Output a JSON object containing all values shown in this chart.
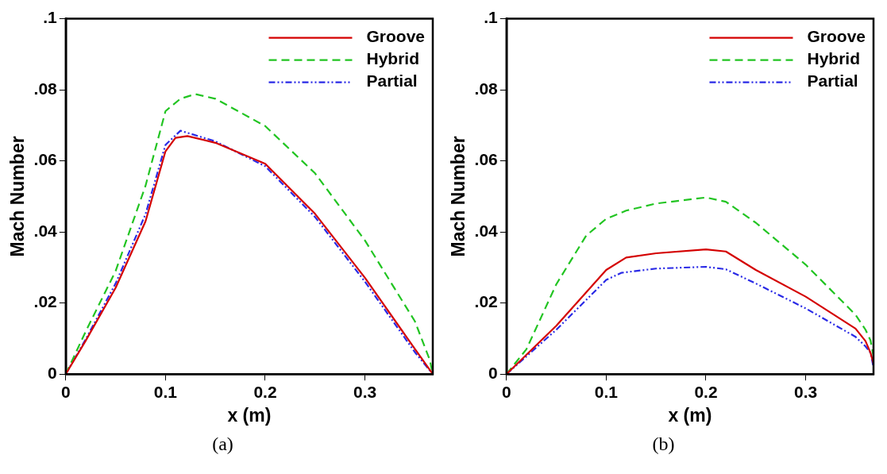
{
  "chart_data": [
    {
      "type": "line",
      "xlabel": "x (m)",
      "ylabel": "Mach Number",
      "annotations": [
        "(a)"
      ],
      "legend": "top right",
      "xlim": [
        0,
        0.368
      ],
      "xticks": [
        0,
        0.1,
        0.2,
        0.3
      ],
      "ylim": [
        0,
        0.1
      ],
      "yticks": [
        0,
        {
          "value": 0.02,
          "label": ".02"
        },
        {
          "value": 0.04,
          "label": ".04"
        },
        {
          "value": 0.06,
          "label": ".06"
        },
        {
          "value": 0.08,
          "label": ".08"
        },
        {
          "value": 0.1,
          "label": ".1"
        }
      ],
      "series": [
        {
          "name": "Groove",
          "color": "#d40000",
          "line_style": "solid",
          "x": [
            0,
            0.02,
            0.05,
            0.08,
            0.1,
            0.11,
            0.122,
            0.15,
            0.2,
            0.25,
            0.3,
            0.35,
            0.368
          ],
          "values": [
            0,
            0.0094,
            0.0243,
            0.043,
            0.0627,
            0.0665,
            0.067,
            0.0651,
            0.0592,
            0.0451,
            0.0271,
            0.0071,
            0
          ]
        },
        {
          "name": "Hybrid",
          "color": "#22c422",
          "line_style": "dashed",
          "x": [
            0,
            0.02,
            0.05,
            0.08,
            0.1,
            0.115,
            0.13,
            0.15,
            0.2,
            0.25,
            0.3,
            0.35,
            0.365,
            0.368
          ],
          "values": [
            0,
            0.012,
            0.029,
            0.053,
            0.074,
            0.0775,
            0.0788,
            0.0775,
            0.0698,
            0.0565,
            0.0376,
            0.0149,
            0.004,
            0
          ]
        },
        {
          "name": "Partial",
          "color": "#2a2ae6",
          "line_style": "dotted",
          "x": [
            0,
            0.02,
            0.05,
            0.08,
            0.1,
            0.115,
            0.15,
            0.2,
            0.25,
            0.3,
            0.35,
            0.368
          ],
          "values": [
            0,
            0.0098,
            0.0255,
            0.045,
            0.0645,
            0.0685,
            0.0655,
            0.0585,
            0.0442,
            0.026,
            0.0062,
            0
          ]
        }
      ]
    },
    {
      "type": "line",
      "xlabel": "x (m)",
      "ylabel": "Mach Number",
      "annotations": [
        "(b)"
      ],
      "legend": "top right",
      "xlim": [
        0,
        0.368
      ],
      "xticks": [
        0,
        0.1,
        0.2,
        0.3
      ],
      "ylim": [
        0,
        0.1
      ],
      "yticks": [
        0,
        {
          "value": 0.02,
          "label": ".02"
        },
        {
          "value": 0.04,
          "label": ".04"
        },
        {
          "value": 0.06,
          "label": ".06"
        },
        {
          "value": 0.08,
          "label": ".08"
        },
        {
          "value": 0.1,
          "label": ".1"
        }
      ],
      "series": [
        {
          "name": "Groove",
          "color": "#d40000",
          "line_style": "solid",
          "x": [
            0,
            0.05,
            0.1,
            0.12,
            0.15,
            0.2,
            0.22,
            0.25,
            0.3,
            0.35,
            0.36,
            0.365,
            0.368
          ],
          "values": [
            0,
            0.0136,
            0.0293,
            0.0328,
            0.034,
            0.0351,
            0.0345,
            0.0293,
            0.0218,
            0.0128,
            0.0093,
            0.006,
            0.003
          ]
        },
        {
          "name": "Hybrid",
          "color": "#22c422",
          "line_style": "dashed",
          "x": [
            0,
            0.02,
            0.05,
            0.08,
            0.1,
            0.12,
            0.15,
            0.2,
            0.22,
            0.25,
            0.3,
            0.35,
            0.36,
            0.365,
            0.368
          ],
          "values": [
            0,
            0.007,
            0.0253,
            0.039,
            0.0437,
            0.046,
            0.048,
            0.0497,
            0.0485,
            0.0426,
            0.0308,
            0.0167,
            0.0125,
            0.0095,
            0.005
          ]
        },
        {
          "name": "Partial",
          "color": "#2a2ae6",
          "line_style": "dotted",
          "x": [
            0,
            0.05,
            0.1,
            0.115,
            0.15,
            0.2,
            0.22,
            0.25,
            0.3,
            0.35,
            0.36,
            0.365,
            0.368
          ],
          "values": [
            0,
            0.0125,
            0.0265,
            0.0285,
            0.0297,
            0.0302,
            0.0295,
            0.0255,
            0.0185,
            0.0105,
            0.0078,
            0.006,
            0.002
          ]
        }
      ]
    }
  ]
}
